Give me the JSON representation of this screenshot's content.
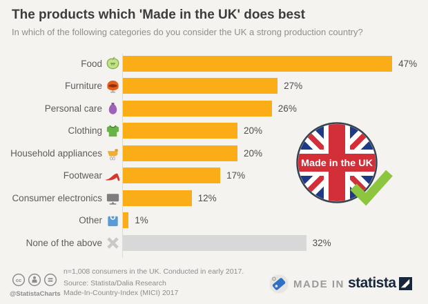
{
  "header": {
    "title": "The products which 'Made in the UK' does best",
    "subtitle": "In which of the following categories do you consider the UK a strong production country?"
  },
  "chart_data": {
    "type": "bar",
    "orientation": "horizontal",
    "title": "The products which 'Made in the UK' does best",
    "subtitle": "In which of the following categories do you consider the UK a strong production country?",
    "unit": "%",
    "categories": [
      "Food",
      "Furniture",
      "Personal care",
      "Clothing",
      "Household appliances",
      "Footwear",
      "Consumer electronics",
      "Other",
      "None of the above"
    ],
    "values": [
      47,
      27,
      26,
      20,
      20,
      17,
      12,
      1,
      32
    ],
    "value_labels": [
      "47%",
      "27%",
      "26%",
      "20%",
      "20%",
      "17%",
      "12%",
      "1%",
      "32%"
    ],
    "icons": [
      "apple-icon",
      "armchair-icon",
      "lotion-bottle-icon",
      "sweater-icon",
      "hand-mixer-icon",
      "high-heel-icon",
      "tv-icon",
      "shopping-bag-icon",
      "x-icon"
    ],
    "colors": [
      "#FBAD18",
      "#FBAD18",
      "#FBAD18",
      "#FBAD18",
      "#FBAD18",
      "#FBAD18",
      "#FBAD18",
      "#FBAD18",
      "#D8D8D8"
    ],
    "xlim": [
      0,
      50
    ],
    "grid": false,
    "legend": false,
    "value_labels_position": "right-of-bar"
  },
  "badge": {
    "label": "Made in the UK"
  },
  "footer": {
    "note": "n=1,008 consumers in the UK. Conducted in early 2017.",
    "source_line1": "Source: Statista/Dalia Research",
    "source_line2": "Made-In-Country-Index (MICI) 2017",
    "attribution": "@StatistaCharts",
    "made_in_label": "MADE IN",
    "statista_label": "statista"
  },
  "colors": {
    "background": "#F5F3F0",
    "bar_orange": "#FBAD18",
    "bar_gray": "#D8D8D8",
    "flag_blue": "#1E3A85",
    "flag_red": "#D22F39",
    "check_green": "#8CC63E"
  }
}
